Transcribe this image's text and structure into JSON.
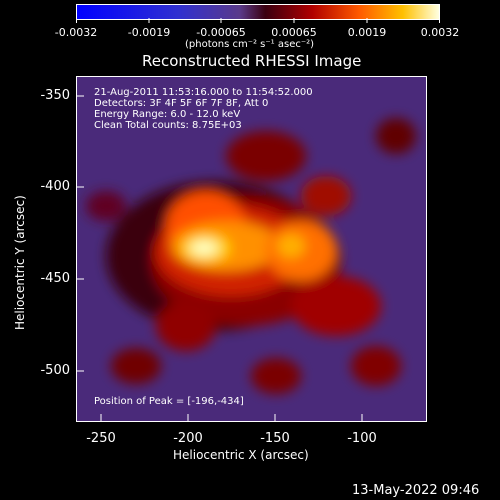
{
  "colorbar": {
    "tick_labels": [
      "-0.0032",
      "-0.0019",
      "-0.00065",
      "0.00065",
      "0.0019",
      "0.0032"
    ],
    "unit_label": "(photons cm⁻² s⁻¹ asec⁻²)"
  },
  "title": "Reconstructed RHESSI Image",
  "annotations": [
    "21-Aug-2011 11:53:16.000 to 11:54:52.000",
    "Detectors: 3F 4F 5F 6F 7F 8F, Att 0",
    "Energy Range: 6.0 - 12.0 keV",
    "Clean     Total counts: 8.75E+03"
  ],
  "peak_label": "Position of Peak = [-196,-434]",
  "axes": {
    "xlabel": "Heliocentric X (arcsec)",
    "ylabel": "Heliocentric Y (arcsec)",
    "xticks": [
      "-250",
      "-200",
      "-150",
      "-100"
    ],
    "yticks": [
      "-350",
      "-400",
      "-450",
      "-500"
    ]
  },
  "footer_date": "13-May-2022 09:46",
  "colors": {
    "background": "#000000",
    "foreground": "#ffffff",
    "colormap_low": "#0000ff",
    "colormap_mid": "#5a3a8a",
    "colormap_high": "#ffffe0"
  }
}
